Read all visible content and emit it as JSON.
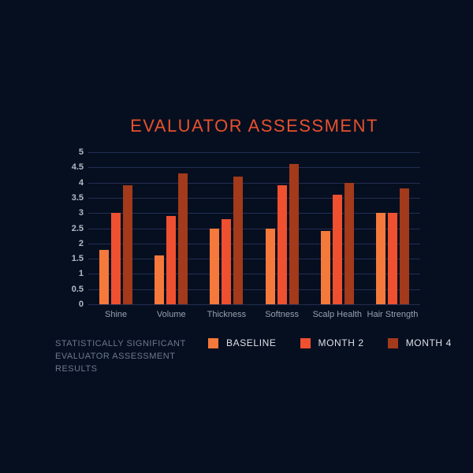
{
  "footnote_lines": [
    "STATISTICALLY SIGNIFICANT",
    "EVALUATOR ASSESSMENT",
    "RESULTS"
  ],
  "chart_data": {
    "type": "bar",
    "title": "EVALUATOR ASSESSMENT",
    "categories": [
      "Shine",
      "Volume",
      "Thickness",
      "Softness",
      "Scalp Health",
      "Hair Strength"
    ],
    "series": [
      {
        "name": "BASELINE",
        "color": "#F4793B",
        "values": [
          1.8,
          1.6,
          2.5,
          2.5,
          2.4,
          3.0
        ]
      },
      {
        "name": "MONTH 2",
        "color": "#EF5030",
        "values": [
          3.0,
          2.9,
          2.8,
          3.9,
          3.6,
          3.0
        ]
      },
      {
        "name": "MONTH 4",
        "color": "#A23A1B",
        "values": [
          3.9,
          4.3,
          4.2,
          4.6,
          4.0,
          3.8
        ]
      }
    ],
    "xlabel": "",
    "ylabel": "",
    "ylim": [
      0,
      5
    ],
    "ytick_step": 0.5,
    "grid": true,
    "legend_position": "bottom",
    "background_color": "#060F20",
    "gridline_color": "#222E52",
    "title_color": "#E8512D"
  }
}
